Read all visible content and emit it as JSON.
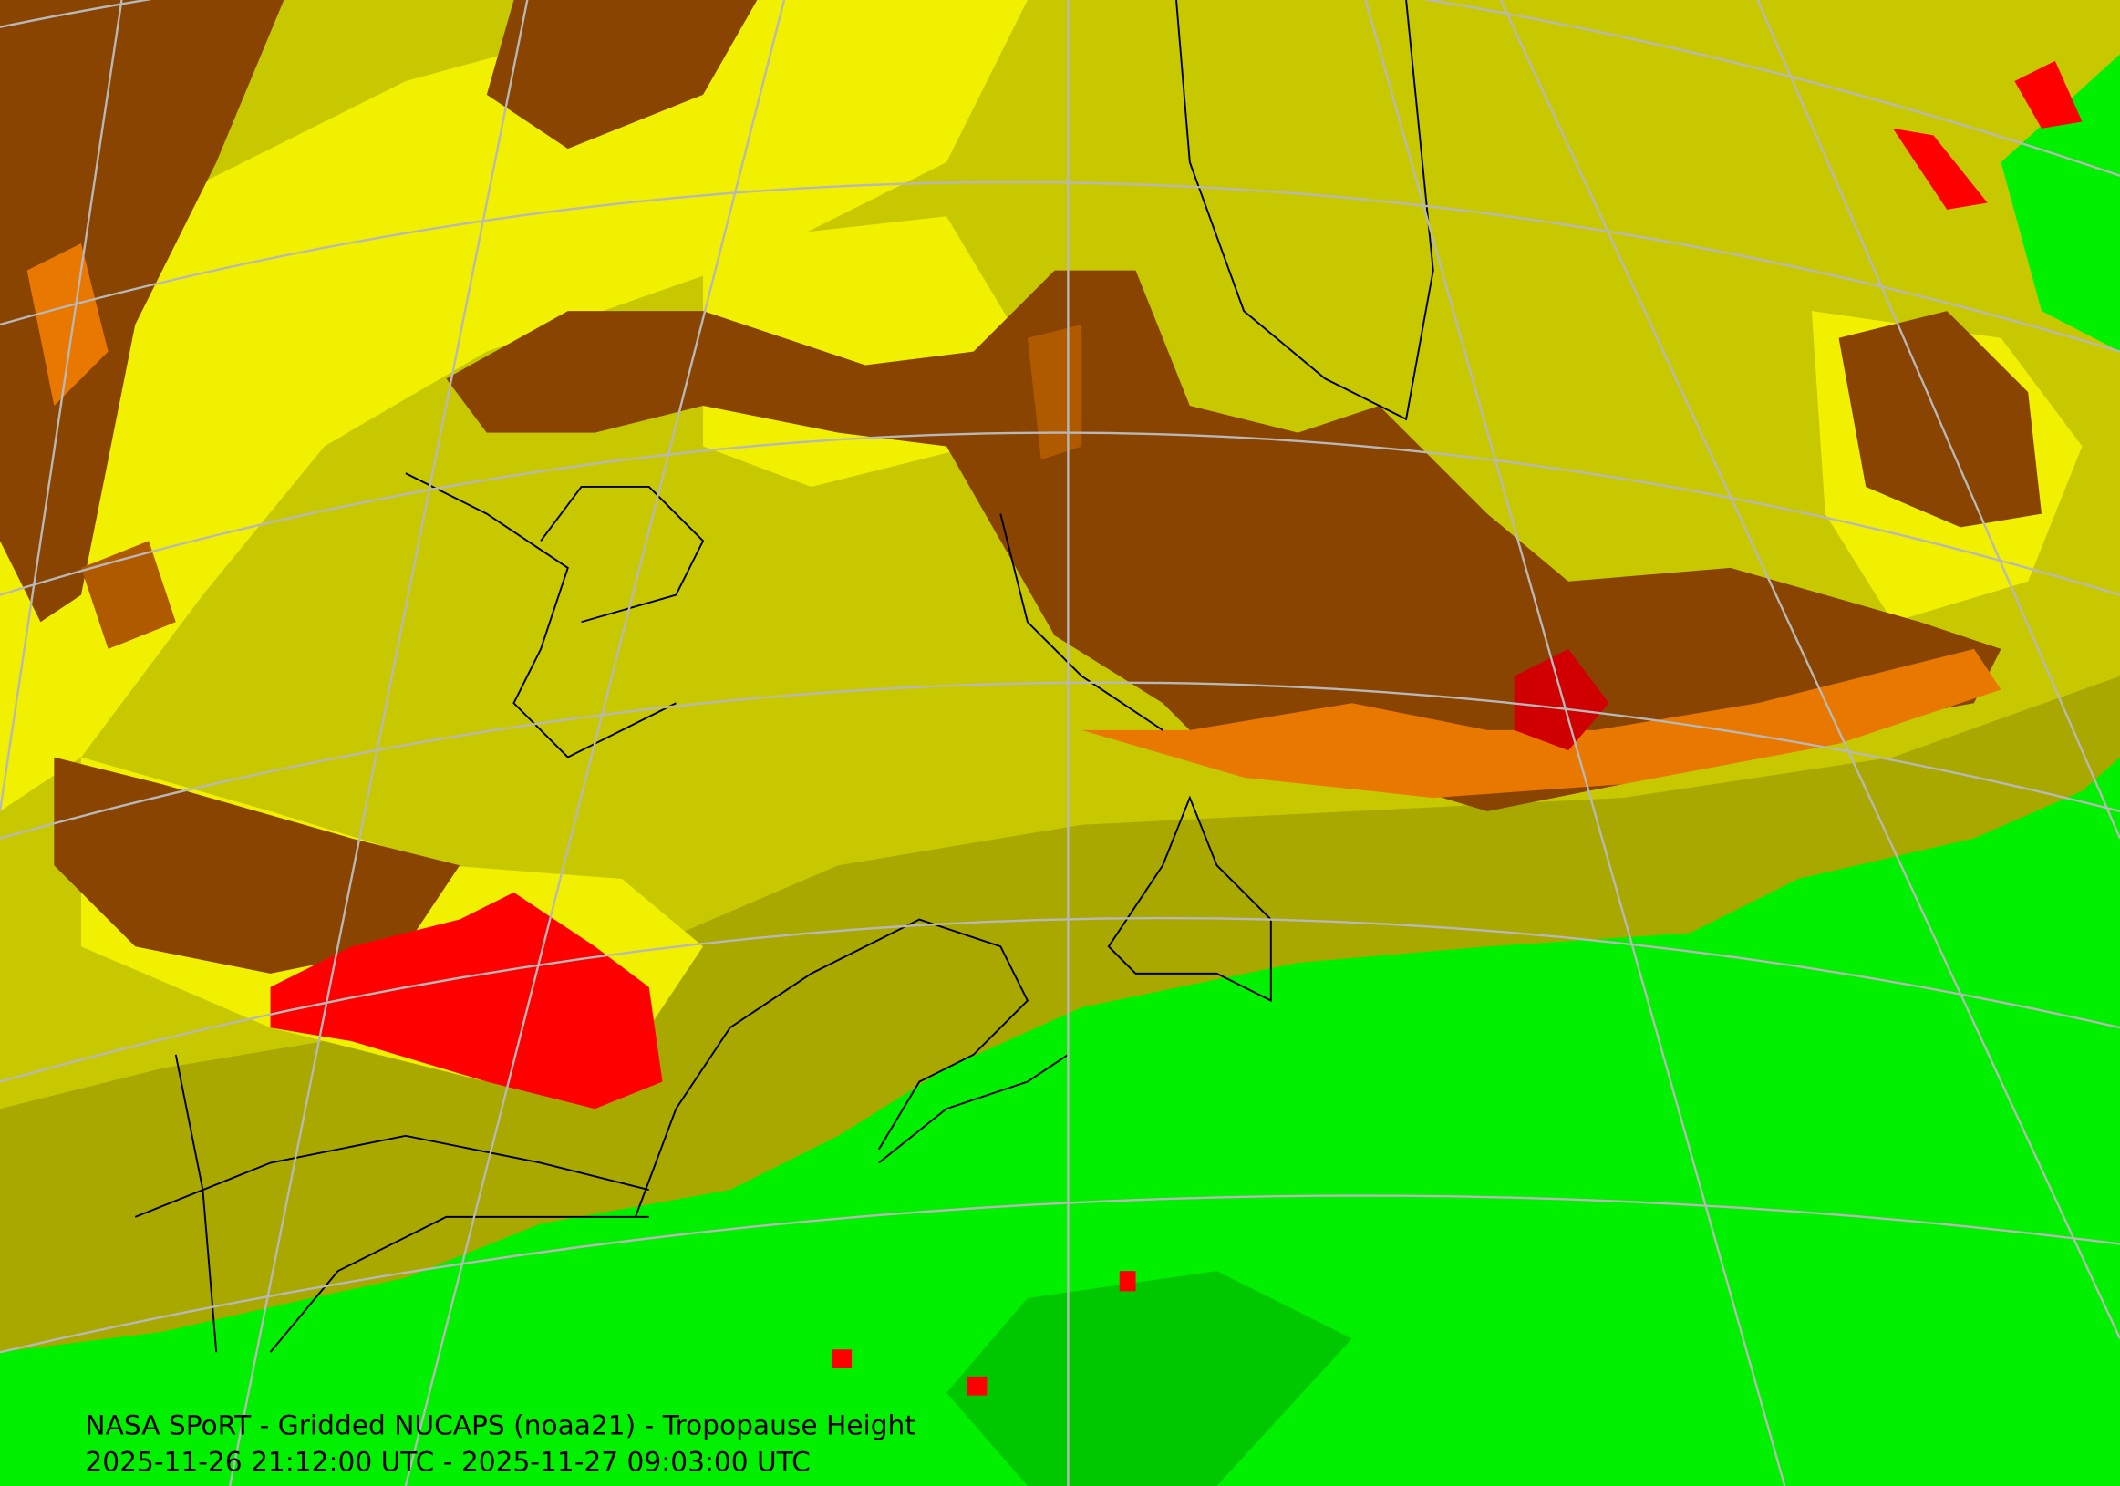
{
  "caption": {
    "title": "NASA SPoRT - Gridded NUCAPS (noaa21) - Tropopause Height",
    "time_range": "2025-11-26 21:12:00 UTC - 2025-11-27 09:03:00 UTC"
  }
}
